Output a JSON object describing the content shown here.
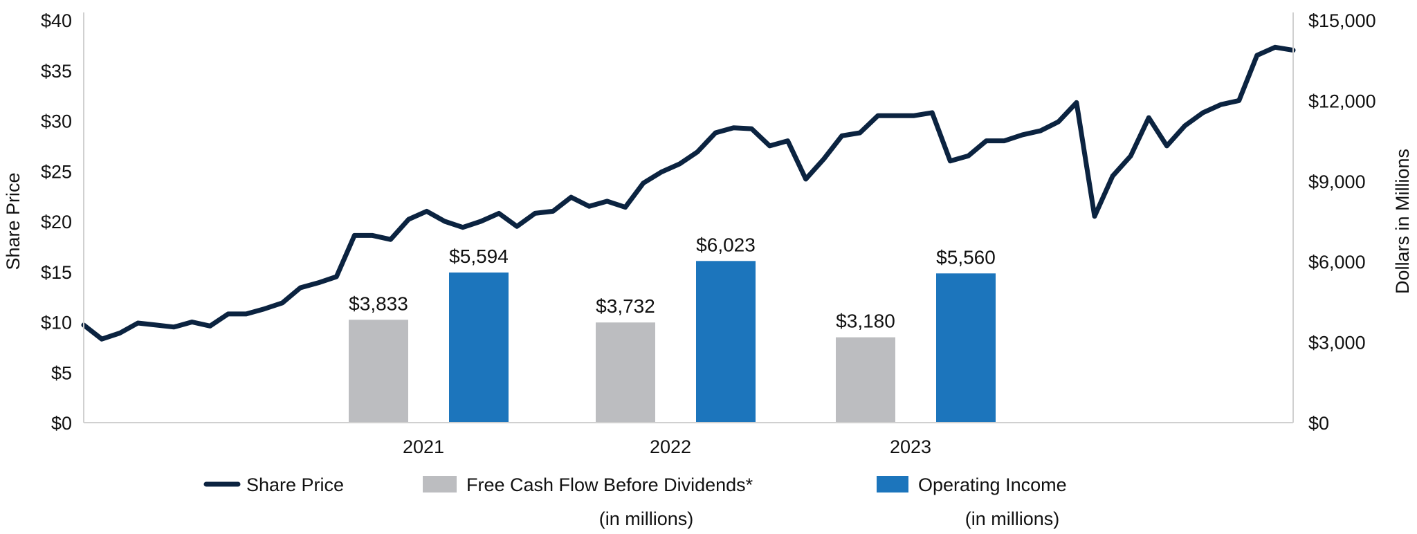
{
  "chart_data": {
    "type": "line+bar",
    "left_axis": {
      "label": "Share Price",
      "ylim": [
        0,
        40
      ],
      "ticks": [
        "$0",
        "$5",
        "$10",
        "$15",
        "$20",
        "$25",
        "$30",
        "$35",
        "$40"
      ]
    },
    "right_axis": {
      "label": "Dollars in Millions",
      "ylim": [
        0,
        15000
      ],
      "ticks": [
        "$0",
        "$3,000",
        "$6,000",
        "$9,000",
        "$12,000",
        "$15,000"
      ]
    },
    "categories": [
      "2021",
      "2022",
      "2023"
    ],
    "bar_series": [
      {
        "name": "Free Cash Flow Before Dividends*",
        "name_line2": "(in millions)",
        "color": "#bcbdc0",
        "values": [
          3833,
          3732,
          3180
        ],
        "labels": [
          "$3,833",
          "$3,732",
          "$3,180"
        ]
      },
      {
        "name": "Operating Income",
        "name_line2": "(in millions)",
        "color": "#1c75bc",
        "values": [
          5594,
          6023,
          5560
        ],
        "labels": [
          "$5,594",
          "$6,023",
          "$5,560"
        ]
      }
    ],
    "line_series": {
      "name": "Share Price",
      "color": "#0b2340",
      "values": [
        9.7,
        8.3,
        8.9,
        9.9,
        9.7,
        9.5,
        10.0,
        9.6,
        10.8,
        10.8,
        11.3,
        11.9,
        13.4,
        13.9,
        14.5,
        18.6,
        18.6,
        18.2,
        20.2,
        21.0,
        20.0,
        19.4,
        20.0,
        20.8,
        19.5,
        20.8,
        21.0,
        22.4,
        21.5,
        22.0,
        21.4,
        23.8,
        24.9,
        25.7,
        26.9,
        28.8,
        29.3,
        29.2,
        27.5,
        28.0,
        24.2,
        26.2,
        28.5,
        28.8,
        30.5,
        30.5,
        30.5,
        30.8,
        26.0,
        26.5,
        28.0,
        28.0,
        28.6,
        29.0,
        29.9,
        31.8,
        20.5,
        24.5,
        26.5,
        30.3,
        27.5,
        29.5,
        30.8,
        31.6,
        32.0,
        36.5,
        37.3,
        37.0
      ]
    },
    "grid": false,
    "legend": "bottom"
  }
}
